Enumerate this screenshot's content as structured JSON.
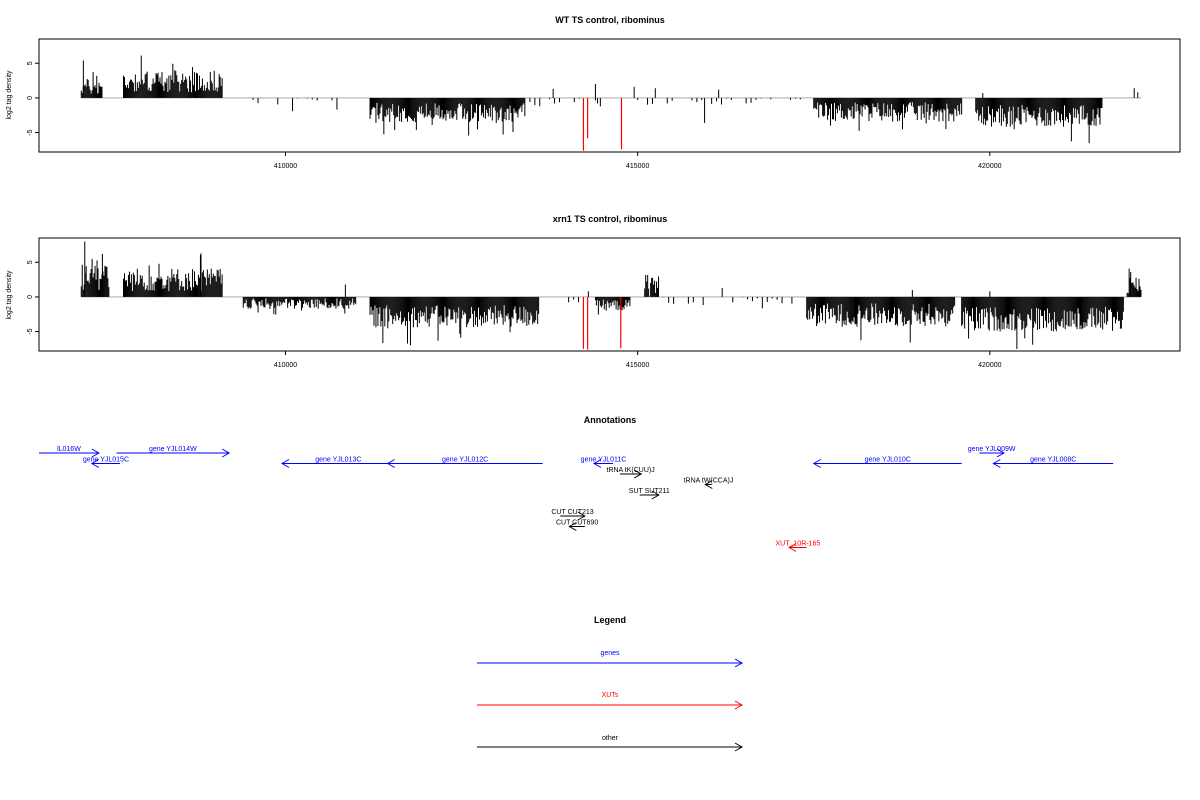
{
  "colors": {
    "gene": "#0000ff",
    "xut": "#ff0000",
    "other": "#000000",
    "red_bar": "#ff0000",
    "baseline": "#9e9e9e"
  },
  "chart_data": [
    {
      "type": "bar",
      "title": "WT TS control, ribominus",
      "ylabel": "log2 tag density",
      "xlim": [
        406500,
        422700
      ],
      "ylim": [
        -7.8,
        8.5
      ],
      "yticks": [
        "5",
        "0",
        "-5"
      ],
      "ytick_values": [
        5,
        0,
        -5
      ],
      "xticks": [
        "410000",
        "415000",
        "420000"
      ],
      "xtick_values": [
        410000,
        415000,
        420000
      ],
      "grid": false,
      "profile_segments": [
        {
          "from": 407100,
          "to": 407400,
          "mean": 1.6,
          "amp": 1.2
        },
        {
          "from": 407700,
          "to": 409100,
          "mean": 2.4,
          "amp": 1.6
        },
        {
          "from": 409400,
          "to": 410800,
          "mean": -0.7,
          "amp": 0.8,
          "sparse": true
        },
        {
          "from": 411200,
          "to": 413400,
          "mean": -2.1,
          "amp": 1.4
        },
        {
          "from": 413400,
          "to": 414200,
          "mean": -0.6,
          "amp": 0.6,
          "sparse": true
        },
        {
          "from": 414400,
          "to": 414800,
          "mean": -0.7,
          "amp": 0.6,
          "sparse": true
        },
        {
          "from": 415000,
          "to": 417400,
          "mean": -0.5,
          "amp": 0.5,
          "sparse": true
        },
        {
          "from": 417500,
          "to": 419600,
          "mean": -2.0,
          "amp": 1.4
        },
        {
          "from": 419800,
          "to": 421600,
          "mean": -2.6,
          "amp": 1.6
        }
      ],
      "spikes": [
        {
          "x": 407130,
          "y": 5.4
        },
        {
          "x": 407320,
          "y": 3.2
        },
        {
          "x": 413800,
          "y": 1.3
        },
        {
          "x": 414400,
          "y": 2.0
        },
        {
          "x": 414430,
          "y": -0.8
        },
        {
          "x": 414950,
          "y": 1.6
        },
        {
          "x": 415250,
          "y": 1.4
        },
        {
          "x": 416150,
          "y": 1.2
        },
        {
          "x": 415950,
          "y": -3.6
        },
        {
          "x": 419900,
          "y": 0.7
        },
        {
          "x": 422050,
          "y": 1.4
        },
        {
          "x": 422100,
          "y": 0.8
        }
      ],
      "highlight_bars": [
        {
          "x": 414230,
          "y": -7.6
        },
        {
          "x": 414290,
          "y": -5.8
        },
        {
          "x": 414770,
          "y": -7.4
        }
      ]
    },
    {
      "type": "bar",
      "title": "xrn1 TS control, ribominus",
      "ylabel": "log2 tag density",
      "xlim": [
        406500,
        422700
      ],
      "ylim": [
        -7.8,
        8.5
      ],
      "yticks": [
        "5",
        "0",
        "-5"
      ],
      "ytick_values": [
        5,
        0,
        -5
      ],
      "xticks": [
        "410000",
        "415000",
        "420000"
      ],
      "xtick_values": [
        410000,
        415000,
        420000
      ],
      "grid": false,
      "profile_segments": [
        {
          "from": 407100,
          "to": 407500,
          "mean": 2.8,
          "amp": 1.8
        },
        {
          "from": 407700,
          "to": 409100,
          "mean": 2.5,
          "amp": 1.7
        },
        {
          "from": 409400,
          "to": 411000,
          "mean": -1.0,
          "amp": 0.8
        },
        {
          "from": 411200,
          "to": 413600,
          "mean": -2.8,
          "amp": 1.6
        },
        {
          "from": 413600,
          "to": 414200,
          "mean": -0.8,
          "amp": 0.6,
          "sparse": true
        },
        {
          "from": 414400,
          "to": 414900,
          "mean": -1.2,
          "amp": 0.8
        },
        {
          "from": 415100,
          "to": 415300,
          "mean": 1.8,
          "amp": 1.8
        },
        {
          "from": 415300,
          "to": 417400,
          "mean": -0.6,
          "amp": 0.6,
          "sparse": true
        },
        {
          "from": 417400,
          "to": 419500,
          "mean": -2.6,
          "amp": 1.7
        },
        {
          "from": 419600,
          "to": 421900,
          "mean": -3.2,
          "amp": 1.8
        },
        {
          "from": 421950,
          "to": 422150,
          "mean": 1.8,
          "amp": 1.3
        }
      ],
      "spikes": [
        {
          "x": 407150,
          "y": 8.0
        },
        {
          "x": 407400,
          "y": 6.2
        },
        {
          "x": 408800,
          "y": 6.3
        },
        {
          "x": 410850,
          "y": 1.8
        },
        {
          "x": 414300,
          "y": 0.8
        },
        {
          "x": 416200,
          "y": 1.3
        },
        {
          "x": 418900,
          "y": 1.0
        },
        {
          "x": 420000,
          "y": 0.8
        },
        {
          "x": 422000,
          "y": 3.6
        }
      ],
      "highlight_bars": [
        {
          "x": 414230,
          "y": -7.5
        },
        {
          "x": 414290,
          "y": -7.6
        },
        {
          "x": 414760,
          "y": -7.4
        }
      ]
    }
  ],
  "annotations": {
    "title": "Annotations",
    "features": [
      {
        "label": "lL016W",
        "kind": "gene",
        "from": 406500,
        "to": 407350,
        "row": 0
      },
      {
        "label": "gene YJL015C",
        "kind": "gene",
        "from": 407650,
        "to": 407250,
        "row": 1
      },
      {
        "label": "gene YJL014W",
        "kind": "gene",
        "from": 407600,
        "to": 409200,
        "row": 0
      },
      {
        "label": "gene YJL013C",
        "kind": "gene",
        "from": 411550,
        "to": 409950,
        "row": 1
      },
      {
        "label": "gene YJL012C",
        "kind": "gene",
        "from": 413650,
        "to": 411450,
        "row": 1
      },
      {
        "label": "gene YJL011C",
        "kind": "gene",
        "from": 414650,
        "to": 414380,
        "row": 1
      },
      {
        "label": "tRNA tK(CUU)J",
        "kind": "other",
        "from": 414750,
        "to": 415050,
        "row": 2
      },
      {
        "label": "tRNA tW(CCA)J",
        "kind": "other",
        "from": 416050,
        "to": 415960,
        "row": 3
      },
      {
        "label": "SUT SUT211",
        "kind": "other",
        "from": 415030,
        "to": 415300,
        "row": 4
      },
      {
        "label": "CUT CUT213",
        "kind": "other",
        "from": 413900,
        "to": 414250,
        "row": 6
      },
      {
        "label": "CUT CUT690",
        "kind": "other",
        "from": 414250,
        "to": 414030,
        "row": 7
      },
      {
        "label": "XUT_10R-165",
        "kind": "xut",
        "from": 417400,
        "to": 417150,
        "row": 9
      },
      {
        "label": "gene YJL010C",
        "kind": "gene",
        "from": 419600,
        "to": 417500,
        "row": 1
      },
      {
        "label": "gene YJL009W",
        "kind": "gene",
        "from": 419850,
        "to": 420200,
        "row": 0
      },
      {
        "label": "gene YJL008C",
        "kind": "gene",
        "from": 421750,
        "to": 420050,
        "row": 1
      }
    ]
  },
  "legend": {
    "title": "Legend",
    "items": [
      {
        "label": "genes",
        "kind": "gene"
      },
      {
        "label": "XUTs",
        "kind": "xut"
      },
      {
        "label": "other",
        "kind": "other"
      }
    ]
  }
}
